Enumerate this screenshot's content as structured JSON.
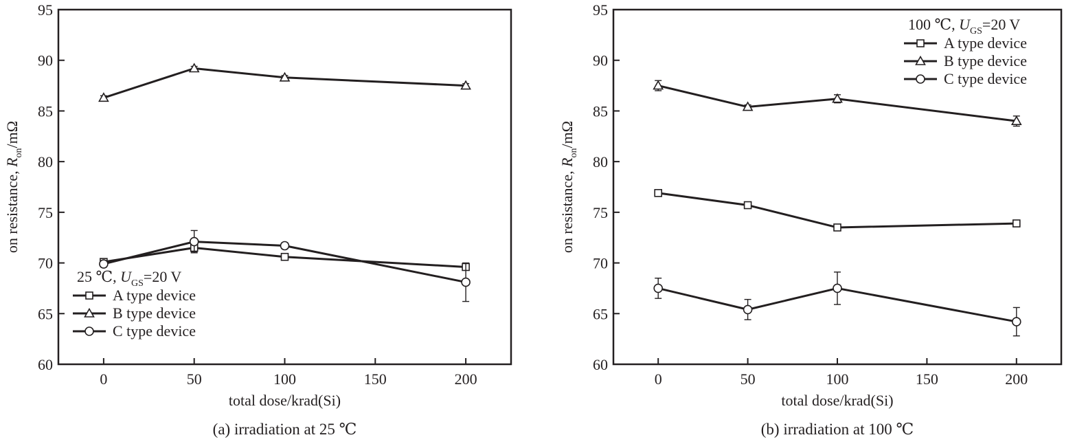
{
  "chart_data": [
    {
      "type": "line",
      "caption": "(a) irradiation at 25 ℃",
      "xlabel": "total dose/krad(Si)",
      "ylabel": {
        "prefix": "on resistance, ",
        "symbol": "R",
        "subscript": "on",
        "suffix": "/mΩ"
      },
      "xlim": [
        -25,
        225
      ],
      "ylim": [
        60,
        95
      ],
      "xticks": [
        0,
        50,
        100,
        150,
        200
      ],
      "yticks": [
        60,
        65,
        70,
        75,
        80,
        85,
        90,
        95
      ],
      "x": [
        0,
        50,
        100,
        200
      ],
      "legend_position": "bottom-left",
      "condition": {
        "temp": "25 ℃, ",
        "symbol": "U",
        "subscript": "GS",
        "suffix": "=20 V"
      },
      "series": [
        {
          "name": "A type device",
          "marker": "square",
          "values": [
            70.1,
            71.5,
            70.6,
            69.6
          ],
          "errors": [
            0.2,
            0.4,
            0.2,
            0.2
          ]
        },
        {
          "name": "B type device",
          "marker": "triangle",
          "values": [
            86.3,
            89.2,
            88.3,
            87.5
          ],
          "errors": [
            0.2,
            0.2,
            0.2,
            0.2
          ]
        },
        {
          "name": "C type device",
          "marker": "circle",
          "values": [
            69.9,
            72.1,
            71.7,
            68.1
          ],
          "errors": [
            0.3,
            1.1,
            0.3,
            1.9
          ]
        }
      ]
    },
    {
      "type": "line",
      "caption": "(b) irradiation at 100 ℃",
      "xlabel": "total dose/krad(Si)",
      "ylabel": {
        "prefix": "on resistance, ",
        "symbol": "R",
        "subscript": "on",
        "suffix": "/mΩ"
      },
      "xlim": [
        -25,
        225
      ],
      "ylim": [
        60,
        95
      ],
      "xticks": [
        0,
        50,
        100,
        150,
        200
      ],
      "yticks": [
        60,
        65,
        70,
        75,
        80,
        85,
        90,
        95
      ],
      "x": [
        0,
        50,
        100,
        200
      ],
      "legend_position": "top-right",
      "condition": {
        "temp": "100 ℃, ",
        "symbol": "U",
        "subscript": "GS",
        "suffix": "=20 V"
      },
      "series": [
        {
          "name": "A type device",
          "marker": "square",
          "values": [
            76.9,
            75.7,
            73.5,
            73.9
          ],
          "errors": [
            0.2,
            0.2,
            0.2,
            0.2
          ]
        },
        {
          "name": "B type device",
          "marker": "triangle",
          "values": [
            87.5,
            85.4,
            86.2,
            84.0
          ],
          "errors": [
            0.5,
            0.2,
            0.4,
            0.5
          ]
        },
        {
          "name": "C type device",
          "marker": "circle",
          "values": [
            67.5,
            65.4,
            67.5,
            64.2
          ],
          "errors": [
            1.0,
            1.0,
            1.6,
            1.4
          ]
        }
      ]
    }
  ]
}
